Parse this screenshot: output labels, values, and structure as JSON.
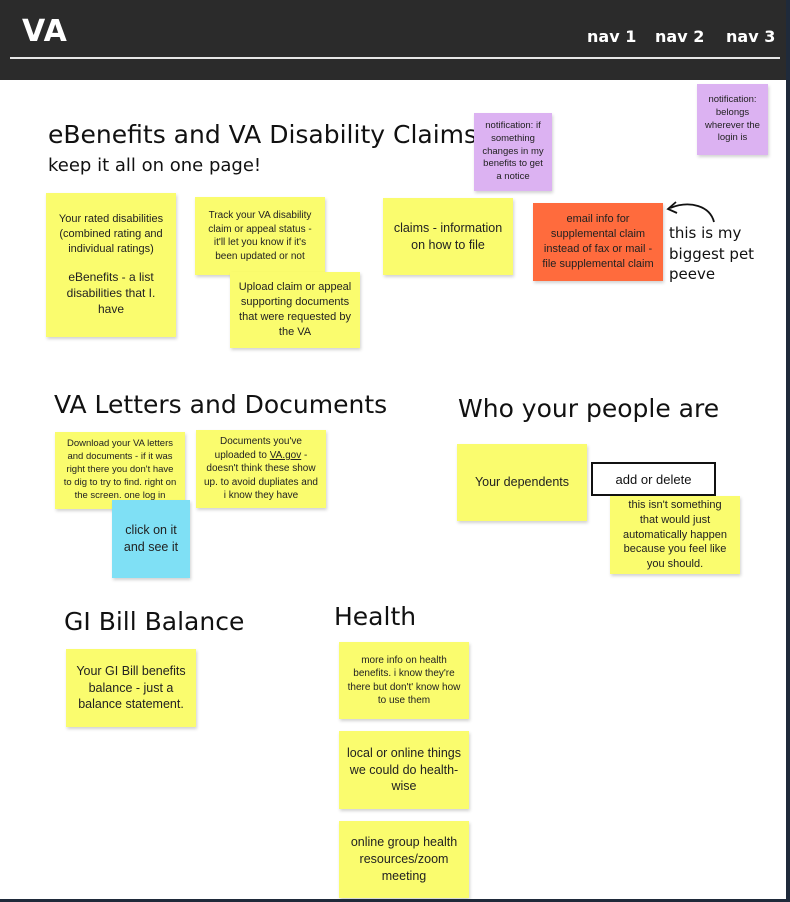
{
  "header": {
    "logo": "VA",
    "nav": [
      "nav 1",
      "nav 2",
      "nav 3"
    ]
  },
  "sections": {
    "ebenefits": {
      "title": "eBenefits and VA Disability Claims",
      "subtitle": "keep it all on one page!"
    },
    "letters": {
      "title": "VA Letters and Documents"
    },
    "people": {
      "title": "Who your people are"
    },
    "gi_bill": {
      "title": "GI Bill Balance"
    },
    "health": {
      "title": "Health"
    }
  },
  "notes": {
    "rated_disabilities_a": "Your rated disabilities (combined rating and individual ratings)",
    "rated_disabilities_b": "eBenefits - a list disabilities that I. have",
    "track_claim": "Track your VA disability claim or appeal status - it'll let you know if it's been updated or not",
    "upload_claim": "Upload claim or appeal supporting documents that were requested by the VA",
    "claims_info": "claims - information on how to file",
    "notification_changes": "notification: if something changes in my benefits to get a notice",
    "notification_login": "notification: belongs wherever the login is",
    "email_info": "email info for supplemental claim instead of fax or mail - file supplemental claim",
    "pet_peeve": "this is my biggest pet peeve",
    "download_letters": "Download your VA letters and documents - if it was right there you don't have to dig to try to find. right on the screen. one log in",
    "documents_uploaded_pre": "Documents you've uploaded to ",
    "documents_uploaded_link": "VA.gov",
    "documents_uploaded_post": " - doesn't think these show up. to avoid dupliates and i know they have",
    "click_see": "click on it and see it",
    "dependents": "Your dependents",
    "add_delete": "add or delete",
    "not_automatic": "this isn't something that would just automatically happen because you feel like you should.",
    "gi_balance": "Your GI Bill benefits balance - just a balance statement.",
    "health_info": "more info on health benefits. i know they're there but don't' know how to use them",
    "health_local": "local or online things we could do health-wise",
    "health_group": "online group health resources/zoom meeting"
  },
  "colors": {
    "header_bg": "#2b2b2b",
    "sticky_yellow": "#fafc6e",
    "sticky_purple": "#dcb2f2",
    "sticky_orange": "#ff6b3d",
    "sticky_blue": "#7fe0f5"
  }
}
